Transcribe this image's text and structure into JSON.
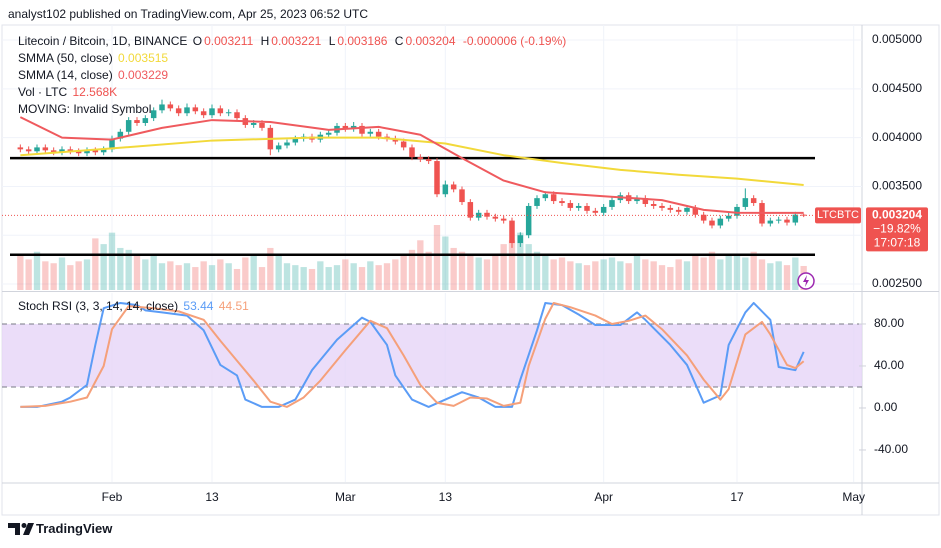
{
  "header": {
    "publisher": "analyst102 published on TradingView.com, Apr 25, 2023 06:52 UTC"
  },
  "footer": {
    "brand": "TradingView"
  },
  "chart_data": [
    {
      "type": "candlestick",
      "title": "Litecoin / Bitcoin, 1D, BINANCE",
      "ohlc_letters": [
        "O",
        "H",
        "L",
        "C"
      ],
      "change": "-0.000006 (-0.19%)",
      "notice": "MOVING: Invalid Symbol",
      "up_color": "#26a69a",
      "down_color": "#ef5350",
      "xlim": [
        "01-20",
        "05-02"
      ],
      "xticks": [
        {
          "value": "02-01",
          "label": "Feb"
        },
        {
          "value": "02-13",
          "label": "13"
        },
        {
          "value": "03-01",
          "label": "Mar"
        },
        {
          "value": "03-13",
          "label": "13"
        },
        {
          "value": "04-01",
          "label": "Apr"
        },
        {
          "value": "04-17",
          "label": "17"
        },
        {
          "value": "05-01",
          "label": "May"
        }
      ],
      "ylim": [
        0.002439,
        0.005072
      ],
      "yticks": [
        {
          "value": 0.0025,
          "label": "0.002500"
        },
        {
          "value": 0.003,
          "label": "0.003000"
        },
        {
          "value": 0.0035,
          "label": "0.003500"
        },
        {
          "value": 0.004,
          "label": "0.004000"
        },
        {
          "value": 0.0045,
          "label": "0.004500"
        },
        {
          "value": 0.005,
          "label": "0.005000"
        }
      ],
      "grid": true,
      "x": [
        "01-21",
        "01-22",
        "01-23",
        "01-24",
        "01-25",
        "01-26",
        "01-27",
        "01-28",
        "01-29",
        "01-30",
        "01-31",
        "02-01",
        "02-02",
        "02-03",
        "02-04",
        "02-05",
        "02-06",
        "02-07",
        "02-08",
        "02-09",
        "02-10",
        "02-11",
        "02-12",
        "02-13",
        "02-14",
        "02-15",
        "02-16",
        "02-17",
        "02-18",
        "02-19",
        "02-20",
        "02-21",
        "02-22",
        "02-23",
        "02-24",
        "02-25",
        "02-26",
        "02-27",
        "02-28",
        "03-01",
        "03-02",
        "03-03",
        "03-04",
        "03-05",
        "03-06",
        "03-07",
        "03-08",
        "03-09",
        "03-10",
        "03-11",
        "03-12",
        "03-13",
        "03-14",
        "03-15",
        "03-16",
        "03-17",
        "03-18",
        "03-19",
        "03-20",
        "03-21",
        "03-22",
        "03-23",
        "03-24",
        "03-25",
        "03-26",
        "03-27",
        "03-28",
        "03-29",
        "03-30",
        "03-31",
        "04-01",
        "04-02",
        "04-03",
        "04-04",
        "04-05",
        "04-06",
        "04-07",
        "04-08",
        "04-09",
        "04-10",
        "04-11",
        "04-12",
        "04-13",
        "04-14",
        "04-15",
        "04-16",
        "04-17",
        "04-18",
        "04-19",
        "04-20",
        "04-21",
        "04-22",
        "04-23",
        "04-24",
        "04-25"
      ],
      "open": [
        0.0039,
        0.00388,
        0.00386,
        0.0039,
        0.00387,
        0.00385,
        0.00388,
        0.00386,
        0.00384,
        0.00387,
        0.00385,
        0.00388,
        0.00399,
        0.00406,
        0.00418,
        0.00415,
        0.0042,
        0.00428,
        0.00434,
        0.0043,
        0.00425,
        0.00431,
        0.00427,
        0.00423,
        0.0043,
        0.00425,
        0.00426,
        0.0042,
        0.00413,
        0.00415,
        0.0041,
        0.00388,
        0.00392,
        0.00395,
        0.00399,
        0.00401,
        0.00398,
        0.00403,
        0.00405,
        0.00412,
        0.00409,
        0.00412,
        0.00404,
        0.00406,
        0.00401,
        0.00399,
        0.00396,
        0.0039,
        0.0038,
        0.00378,
        0.00376,
        0.00342,
        0.00352,
        0.00347,
        0.00334,
        0.00318,
        0.00323,
        0.00319,
        0.00317,
        0.00315,
        0.00292,
        0.003,
        0.0033,
        0.00338,
        0.00342,
        0.00335,
        0.00333,
        0.00328,
        0.0033,
        0.00325,
        0.00323,
        0.00329,
        0.00336,
        0.00341,
        0.00335,
        0.00338,
        0.00332,
        0.0033,
        0.00328,
        0.00326,
        0.00324,
        0.00328,
        0.00321,
        0.00315,
        0.0031,
        0.00317,
        0.0032,
        0.00329,
        0.00338,
        0.00333,
        0.00312,
        0.00315,
        0.00316,
        0.00313,
        0.003211
      ],
      "high": [
        0.00393,
        0.00391,
        0.00393,
        0.00393,
        0.0039,
        0.00391,
        0.00391,
        0.00389,
        0.0039,
        0.0039,
        0.00391,
        0.00402,
        0.00409,
        0.00421,
        0.00421,
        0.00423,
        0.00431,
        0.00439,
        0.00437,
        0.00433,
        0.00435,
        0.00434,
        0.0043,
        0.00434,
        0.00433,
        0.00429,
        0.00429,
        0.00423,
        0.00418,
        0.00418,
        0.00413,
        0.00395,
        0.00398,
        0.00402,
        0.00404,
        0.00404,
        0.00406,
        0.00408,
        0.00415,
        0.00415,
        0.00416,
        0.00415,
        0.00409,
        0.00409,
        0.00404,
        0.00402,
        0.00399,
        0.00393,
        0.00383,
        0.00381,
        0.00379,
        0.00356,
        0.00355,
        0.0035,
        0.00337,
        0.00326,
        0.00326,
        0.00322,
        0.0032,
        0.00318,
        0.00303,
        0.00333,
        0.00341,
        0.00345,
        0.00345,
        0.00338,
        0.00336,
        0.00333,
        0.00333,
        0.00328,
        0.00332,
        0.00339,
        0.00344,
        0.00344,
        0.00341,
        0.00341,
        0.00335,
        0.00333,
        0.00331,
        0.00329,
        0.00331,
        0.00331,
        0.00324,
        0.00318,
        0.0032,
        0.00323,
        0.00332,
        0.00348,
        0.00341,
        0.00336,
        0.00318,
        0.00319,
        0.00319,
        0.00324,
        0.003221
      ],
      "low": [
        0.00385,
        0.00383,
        0.00383,
        0.00384,
        0.00382,
        0.00382,
        0.00383,
        0.00381,
        0.00381,
        0.00382,
        0.00382,
        0.00385,
        0.00396,
        0.00403,
        0.00412,
        0.00412,
        0.00417,
        0.00425,
        0.00427,
        0.00422,
        0.00422,
        0.00424,
        0.0042,
        0.0042,
        0.00422,
        0.00422,
        0.00417,
        0.0041,
        0.0041,
        0.00407,
        0.00382,
        0.00385,
        0.00389,
        0.00392,
        0.00396,
        0.00395,
        0.00395,
        0.004,
        0.00402,
        0.00406,
        0.00406,
        0.00401,
        0.00401,
        0.00398,
        0.00396,
        0.00393,
        0.00387,
        0.00377,
        0.00375,
        0.00373,
        0.00339,
        0.00339,
        0.00344,
        0.00331,
        0.00315,
        0.00315,
        0.00316,
        0.00314,
        0.00312,
        0.00287,
        0.00288,
        0.00297,
        0.00327,
        0.00335,
        0.00332,
        0.0033,
        0.00325,
        0.00325,
        0.00322,
        0.0032,
        0.0032,
        0.00326,
        0.00333,
        0.00332,
        0.00332,
        0.00329,
        0.00327,
        0.00325,
        0.00323,
        0.00321,
        0.00321,
        0.00318,
        0.00312,
        0.00307,
        0.00307,
        0.00314,
        0.00317,
        0.00326,
        0.0033,
        0.00309,
        0.00309,
        0.00312,
        0.0031,
        0.0031,
        0.003186
      ],
      "close": [
        0.00388,
        0.00386,
        0.0039,
        0.00387,
        0.00385,
        0.00388,
        0.00386,
        0.00384,
        0.00387,
        0.00385,
        0.00388,
        0.00399,
        0.00406,
        0.00418,
        0.00415,
        0.0042,
        0.00428,
        0.00434,
        0.0043,
        0.00425,
        0.00431,
        0.00427,
        0.00423,
        0.0043,
        0.00425,
        0.00426,
        0.0042,
        0.00413,
        0.00415,
        0.0041,
        0.00388,
        0.00392,
        0.00395,
        0.00399,
        0.00401,
        0.00398,
        0.00403,
        0.00405,
        0.00412,
        0.00409,
        0.00412,
        0.00404,
        0.00406,
        0.00401,
        0.00399,
        0.00396,
        0.0039,
        0.0038,
        0.00378,
        0.00376,
        0.00342,
        0.00352,
        0.00347,
        0.00334,
        0.00318,
        0.00323,
        0.00319,
        0.00317,
        0.00315,
        0.00292,
        0.003,
        0.0033,
        0.00338,
        0.00342,
        0.00335,
        0.00333,
        0.00328,
        0.0033,
        0.00325,
        0.00323,
        0.00329,
        0.00336,
        0.00341,
        0.00335,
        0.00338,
        0.00332,
        0.0033,
        0.00328,
        0.00326,
        0.00324,
        0.00328,
        0.00321,
        0.00315,
        0.0031,
        0.00317,
        0.0032,
        0.00329,
        0.00338,
        0.00333,
        0.00312,
        0.00315,
        0.00316,
        0.00313,
        0.003211,
        0.003204
      ],
      "volume": {
        "name": "Vol · LTC",
        "last_label": "12.568K",
        "values": [
          18000,
          16000,
          20000,
          15000,
          14000,
          17000,
          13000,
          15000,
          16000,
          27000,
          24000,
          30000,
          22000,
          21000,
          18000,
          16000,
          19000,
          14000,
          15000,
          13000,
          14000,
          12000,
          15000,
          13000,
          16000,
          14000,
          11000,
          17000,
          18000,
          12000,
          22000,
          19000,
          14000,
          13000,
          12000,
          11000,
          15000,
          12000,
          13000,
          16000,
          14000,
          12000,
          15000,
          13000,
          14000,
          16000,
          19000,
          21000,
          26000,
          20000,
          34000,
          28000,
          22000,
          20000,
          18000,
          17000,
          16000,
          19000,
          24000,
          26000,
          30000,
          24000,
          20000,
          18000,
          16000,
          17000,
          15000,
          14000,
          13000,
          15000,
          16000,
          17000,
          15000,
          14000,
          18000,
          16000,
          15000,
          13000,
          12000,
          16000,
          15000,
          18000,
          17000,
          20000,
          16000,
          19000,
          18000,
          17000,
          20000,
          16000,
          14000,
          15000,
          13000,
          17000,
          12568
        ]
      },
      "overlays": [
        {
          "name": "SMMA (50, close)",
          "color": "#f2d93a",
          "x": [
            "01-21",
            "02-01",
            "02-13",
            "02-25",
            "03-05",
            "03-13",
            "03-20",
            "03-27",
            "04-03",
            "04-10",
            "04-17",
            "04-25"
          ],
          "values": [
            0.00382,
            0.00389,
            0.00397,
            0.004,
            0.004,
            0.00394,
            0.00382,
            0.00374,
            0.00367,
            0.00362,
            0.00358,
            0.003515
          ]
        },
        {
          "name": "SMMA (14, close)",
          "color": "#ef5a5e",
          "x": [
            "01-21",
            "01-26",
            "02-01",
            "02-07",
            "02-13",
            "02-20",
            "02-27",
            "03-05",
            "03-10",
            "03-15",
            "03-20",
            "03-25",
            "04-01",
            "04-08",
            "04-13",
            "04-17",
            "04-25"
          ],
          "values": [
            0.00421,
            0.004,
            0.00398,
            0.0041,
            0.00418,
            0.00416,
            0.00408,
            0.00411,
            0.00403,
            0.00379,
            0.00356,
            0.00344,
            0.0034,
            0.00336,
            0.00326,
            0.00323,
            0.003229
          ]
        }
      ],
      "hlines": [
        0.00379,
        0.0028
      ],
      "price_tag": {
        "symbol": "LTCBTC",
        "change": "−19.82%",
        "countdown": "17:07:18"
      }
    },
    {
      "type": "line",
      "title": "Stoch RSI (3, 3, 14, 14, close)",
      "ylim": [
        -70.5,
        109.5
      ],
      "yticks": [
        {
          "value": -40,
          "label": "-40.00"
        },
        {
          "value": 0,
          "label": "0.00"
        },
        {
          "value": 40,
          "label": "40.00"
        },
        {
          "value": 80,
          "label": "80.00"
        }
      ],
      "bands": [
        20,
        80
      ],
      "band_color": "#e6d4f7",
      "series": [
        {
          "color": "#5b9cf6",
          "x": [
            "01-21",
            "01-23",
            "01-26",
            "01-27",
            "01-29",
            "01-30",
            "01-31",
            "02-02",
            "02-04",
            "02-05",
            "02-07",
            "02-10",
            "02-12",
            "02-14",
            "02-16",
            "02-17",
            "02-19",
            "02-21",
            "02-23",
            "02-25",
            "02-28",
            "03-03",
            "03-04",
            "03-06",
            "03-07",
            "03-09",
            "03-11",
            "03-13",
            "03-15",
            "03-17",
            "03-19",
            "03-21",
            "03-22",
            "03-24",
            "03-25",
            "03-27",
            "03-29",
            "03-31",
            "04-03",
            "04-05",
            "04-06",
            "04-09",
            "04-11",
            "04-13",
            "04-15",
            "04-16",
            "04-18",
            "04-19",
            "04-21",
            "04-22",
            "04-24",
            "04-25"
          ],
          "values": [
            1,
            1,
            6,
            10,
            22,
            60,
            95,
            100,
            98,
            93,
            91,
            88,
            74,
            41,
            31,
            8,
            1,
            1,
            8,
            36,
            65,
            86,
            82,
            60,
            31,
            8,
            1,
            8,
            15,
            10,
            1,
            1,
            27,
            74,
            100,
            98,
            89,
            79,
            79,
            91,
            84,
            60,
            41,
            5,
            12,
            60,
            91,
            100,
            84,
            39,
            36,
            53.44
          ]
        },
        {
          "color": "#f5a07a",
          "x": [
            "01-21",
            "01-24",
            "01-27",
            "01-29",
            "01-31",
            "02-01",
            "02-03",
            "02-06",
            "02-09",
            "02-12",
            "02-14",
            "02-16",
            "02-18",
            "02-20",
            "02-22",
            "02-24",
            "02-26",
            "03-01",
            "03-04",
            "03-06",
            "03-08",
            "03-10",
            "03-12",
            "03-14",
            "03-16",
            "03-18",
            "03-20",
            "03-22",
            "03-23",
            "03-25",
            "03-26",
            "03-28",
            "03-31",
            "04-02",
            "04-04",
            "04-06",
            "04-08",
            "04-11",
            "04-13",
            "04-15",
            "04-16",
            "04-18",
            "04-20",
            "04-21",
            "04-23",
            "04-24",
            "04-25"
          ],
          "values": [
            1,
            2,
            6,
            10,
            40,
            75,
            97,
            95,
            92,
            84,
            64,
            45,
            26,
            6,
            1,
            10,
            26,
            55,
            83,
            76,
            50,
            22,
            5,
            2,
            10,
            9,
            2,
            5,
            40,
            85,
            100,
            96,
            88,
            80,
            83,
            88,
            75,
            50,
            27,
            8,
            18,
            70,
            82,
            70,
            41,
            38,
            44.51
          ]
        }
      ]
    }
  ]
}
